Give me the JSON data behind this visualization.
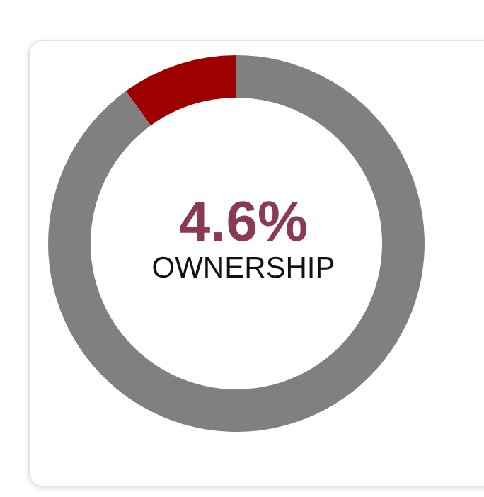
{
  "chart_data": {
    "type": "donut",
    "title": "4.6%",
    "subtitle": "OWNERSHIP",
    "categories": [
      null,
      null
    ],
    "values": [
      10,
      90
    ],
    "colors": [
      "#9e0000",
      "#808080"
    ]
  }
}
